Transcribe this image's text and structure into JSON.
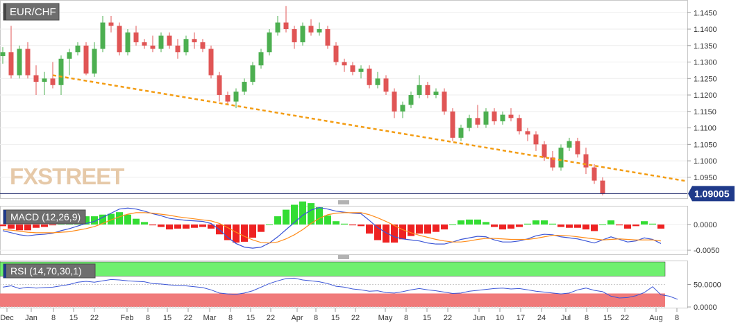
{
  "chart_data": [
    {
      "type": "candlestick",
      "title": "EUR/CHF",
      "watermark": "FXSTREET",
      "y_ticks": [
        "1.1450",
        "1.1400",
        "1.1350",
        "1.1300",
        "1.1250",
        "1.1200",
        "1.1150",
        "1.1100",
        "1.1050",
        "1.1000",
        "1.0950"
      ],
      "ylim": [
        1.0895,
        1.148
      ],
      "last_price_label": "1.09005",
      "last_price": 1.09005,
      "trendline": {
        "color": "#f39c12",
        "style": "dashed",
        "start": [
          6,
          1.126
        ],
        "end": [
          75,
          1.0938
        ]
      },
      "ohlc": [
        [
          1.1318,
          1.1345,
          1.1295,
          1.133
        ],
        [
          1.133,
          1.141,
          1.125,
          1.126
        ],
        [
          1.126,
          1.135,
          1.125,
          1.134
        ],
        [
          1.134,
          1.136,
          1.125,
          1.126
        ],
        [
          1.126,
          1.129,
          1.12,
          1.124
        ],
        [
          1.124,
          1.127,
          1.12,
          1.125
        ],
        [
          1.125,
          1.13,
          1.122,
          1.123
        ],
        [
          1.123,
          1.132,
          1.12,
          1.131
        ],
        [
          1.131,
          1.134,
          1.126,
          1.133
        ],
        [
          1.133,
          1.136,
          1.132,
          1.135
        ],
        [
          1.135,
          1.136,
          1.126,
          1.1265
        ],
        [
          1.1265,
          1.136,
          1.1255,
          1.134
        ],
        [
          1.134,
          1.144,
          1.133,
          1.142
        ],
        [
          1.142,
          1.144,
          1.139,
          1.141
        ],
        [
          1.141,
          1.142,
          1.132,
          1.133
        ],
        [
          1.133,
          1.14,
          1.132,
          1.139
        ],
        [
          1.139,
          1.141,
          1.135,
          1.136
        ],
        [
          1.136,
          1.137,
          1.134,
          1.135
        ],
        [
          1.135,
          1.138,
          1.133,
          1.134
        ],
        [
          1.134,
          1.139,
          1.133,
          1.138
        ],
        [
          1.138,
          1.139,
          1.134,
          1.135
        ],
        [
          1.135,
          1.137,
          1.131,
          1.133
        ],
        [
          1.133,
          1.138,
          1.132,
          1.137
        ],
        [
          1.137,
          1.139,
          1.134,
          1.136
        ],
        [
          1.136,
          1.137,
          1.133,
          1.134
        ],
        [
          1.134,
          1.135,
          1.125,
          1.126
        ],
        [
          1.126,
          1.127,
          1.118,
          1.12
        ],
        [
          1.12,
          1.121,
          1.117,
          1.118
        ],
        [
          1.118,
          1.122,
          1.116,
          1.121
        ],
        [
          1.121,
          1.125,
          1.12,
          1.124
        ],
        [
          1.124,
          1.13,
          1.123,
          1.129
        ],
        [
          1.129,
          1.134,
          1.128,
          1.133
        ],
        [
          1.133,
          1.14,
          1.132,
          1.139
        ],
        [
          1.139,
          1.144,
          1.138,
          1.142
        ],
        [
          1.142,
          1.147,
          1.139,
          1.14
        ],
        [
          1.14,
          1.141,
          1.134,
          1.136
        ],
        [
          1.136,
          1.142,
          1.135,
          1.141
        ],
        [
          1.141,
          1.143,
          1.138,
          1.139
        ],
        [
          1.139,
          1.142,
          1.138,
          1.14
        ],
        [
          1.14,
          1.141,
          1.134,
          1.135
        ],
        [
          1.135,
          1.136,
          1.129,
          1.13
        ],
        [
          1.13,
          1.131,
          1.127,
          1.129
        ],
        [
          1.129,
          1.13,
          1.126,
          1.127
        ],
        [
          1.127,
          1.129,
          1.125,
          1.128
        ],
        [
          1.128,
          1.129,
          1.122,
          1.123
        ],
        [
          1.123,
          1.127,
          1.122,
          1.125
        ],
        [
          1.125,
          1.126,
          1.12,
          1.121
        ],
        [
          1.121,
          1.122,
          1.113,
          1.115
        ],
        [
          1.115,
          1.118,
          1.113,
          1.117
        ],
        [
          1.117,
          1.121,
          1.116,
          1.12
        ],
        [
          1.12,
          1.126,
          1.119,
          1.123
        ],
        [
          1.123,
          1.124,
          1.119,
          1.12
        ],
        [
          1.12,
          1.122,
          1.119,
          1.121
        ],
        [
          1.121,
          1.122,
          1.114,
          1.115
        ],
        [
          1.115,
          1.116,
          1.106,
          1.107
        ],
        [
          1.107,
          1.111,
          1.106,
          1.11
        ],
        [
          1.11,
          1.114,
          1.109,
          1.113
        ],
        [
          1.113,
          1.117,
          1.11,
          1.111
        ],
        [
          1.111,
          1.116,
          1.11,
          1.115
        ],
        [
          1.115,
          1.116,
          1.111,
          1.112
        ],
        [
          1.112,
          1.115,
          1.111,
          1.114
        ],
        [
          1.114,
          1.116,
          1.112,
          1.113
        ],
        [
          1.113,
          1.114,
          1.108,
          1.109
        ],
        [
          1.109,
          1.11,
          1.106,
          1.108
        ],
        [
          1.108,
          1.109,
          1.103,
          1.105
        ],
        [
          1.105,
          1.106,
          1.1,
          1.101
        ],
        [
          1.101,
          1.103,
          1.097,
          1.098
        ],
        [
          1.098,
          1.105,
          1.097,
          1.104
        ],
        [
          1.104,
          1.107,
          1.103,
          1.106
        ],
        [
          1.106,
          1.107,
          1.101,
          1.102
        ],
        [
          1.102,
          1.104,
          1.096,
          1.098
        ],
        [
          1.098,
          1.099,
          1.093,
          1.094
        ],
        [
          1.094,
          1.095,
          1.0895,
          1.09005
        ]
      ]
    },
    {
      "type": "bar+line",
      "title": "MACD (12,26,9)",
      "y_ticks": [
        "0.0000",
        "-0.0050"
      ],
      "ylim": [
        -0.0058,
        0.0035
      ],
      "colors": {
        "hist_pos": "#33dd33",
        "hist_neg": "#ee2222",
        "macd": "#3a54d6",
        "signal": "#ff8c1a"
      },
      "macd": [
        -0.0012,
        -0.0016,
        -0.002,
        -0.0022,
        -0.002,
        -0.0019,
        -0.0017,
        -0.0012,
        -0.0008,
        -0.0003,
        0.0002,
        0.0006,
        0.0014,
        0.0022,
        0.003,
        0.0032,
        0.003,
        0.0026,
        0.0021,
        0.0017,
        0.0012,
        0.001,
        0.0008,
        0.0007,
        0.0006,
        0.0002,
        -0.001,
        -0.0025,
        -0.0037,
        -0.0044,
        -0.0046,
        -0.0044,
        -0.0036,
        -0.0024,
        -0.001,
        0.0004,
        0.0018,
        0.0028,
        0.0033,
        0.003,
        0.0026,
        0.0024,
        0.0022,
        0.0021,
        0.0008,
        -0.0006,
        -0.0016,
        -0.0024,
        -0.0028,
        -0.003,
        -0.0032,
        -0.0036,
        -0.0038,
        -0.0038,
        -0.0034,
        -0.0029,
        -0.0026,
        -0.0023,
        -0.0024,
        -0.003,
        -0.0034,
        -0.0034,
        -0.0032,
        -0.0028,
        -0.0022,
        -0.0019,
        -0.002,
        -0.0024,
        -0.0026,
        -0.0028,
        -0.0032,
        -0.0036,
        -0.003,
        -0.0024,
        -0.0029,
        -0.0034,
        -0.0032,
        -0.0026,
        -0.0029,
        -0.0037
      ],
      "signal": [
        -0.001,
        -0.0011,
        -0.0013,
        -0.0015,
        -0.0016,
        -0.0016,
        -0.0016,
        -0.0015,
        -0.0014,
        -0.0011,
        -0.0008,
        -0.0004,
        0.0002,
        0.0009,
        0.0015,
        0.002,
        0.0023,
        0.0023,
        0.0022,
        0.002,
        0.0018,
        0.0015,
        0.0013,
        0.0011,
        0.0009,
        0.0007,
        0.0002,
        -0.0006,
        -0.0015,
        -0.0023,
        -0.003,
        -0.0035,
        -0.0036,
        -0.0034,
        -0.0028,
        -0.002,
        -0.001,
        0.0002,
        0.0012,
        0.0019,
        0.0022,
        0.0023,
        0.0023,
        0.0023,
        0.0019,
        0.0013,
        0.0006,
        -0.0002,
        -0.001,
        -0.0016,
        -0.0021,
        -0.0025,
        -0.0029,
        -0.0032,
        -0.0034,
        -0.0034,
        -0.0032,
        -0.0029,
        -0.0027,
        -0.0027,
        -0.0028,
        -0.0029,
        -0.0029,
        -0.0029,
        -0.0027,
        -0.0024,
        -0.0021,
        -0.0021,
        -0.0022,
        -0.0024,
        -0.0026,
        -0.0028,
        -0.003,
        -0.0029,
        -0.0028,
        -0.0029,
        -0.003,
        -0.003,
        -0.003,
        -0.0032
      ]
    },
    {
      "type": "line",
      "title": "RSI (14,70,30,1)",
      "y_ticks": [
        "50.0000",
        "0.0000"
      ],
      "ylim": [
        0,
        100
      ],
      "overbought": 70,
      "oversold": 30,
      "colors": {
        "line": "#3a54d6",
        "overbought_zone": "#6ff06f",
        "oversold_zone": "#f07a7a"
      },
      "rsi": [
        44,
        47,
        41,
        44,
        42,
        43,
        44,
        47,
        50,
        55,
        57,
        55,
        58,
        61,
        60,
        58,
        57,
        56,
        52,
        51,
        49,
        48,
        47,
        45,
        43,
        38,
        31,
        29,
        28,
        31,
        36,
        44,
        52,
        58,
        63,
        64,
        60,
        58,
        56,
        52,
        46,
        44,
        40,
        38,
        35,
        36,
        32,
        31,
        34,
        38,
        41,
        38,
        36,
        33,
        30,
        31,
        35,
        37,
        39,
        41,
        42,
        40,
        41,
        38,
        35,
        33,
        31,
        29,
        31,
        38,
        42,
        37,
        34,
        24,
        20,
        21,
        25,
        32,
        45,
        27,
        24,
        17
      ]
    }
  ],
  "x_axis": {
    "labels": [
      "Dec",
      "Jan",
      "8",
      "15",
      "22",
      "Feb",
      "8",
      "15",
      "22",
      "Mar",
      "8",
      "15",
      "22",
      "Apr",
      "8",
      "15",
      "22",
      "May",
      "8",
      "15",
      "22",
      "Jun",
      "10",
      "17",
      "24",
      "Jul",
      "8",
      "15",
      "22",
      "Aug",
      "8"
    ]
  }
}
